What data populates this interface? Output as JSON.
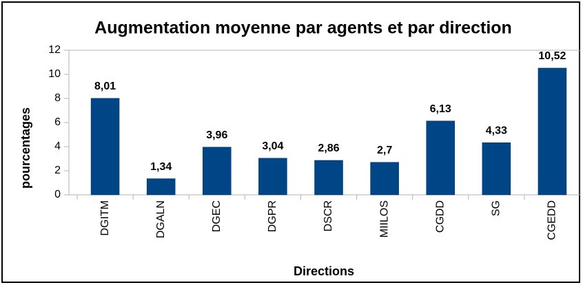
{
  "chart_data": {
    "type": "bar",
    "title": "Augmentation moyenne par agents et par direction",
    "x_label": "Directions",
    "y_label": "pourcentages",
    "categories": [
      "DGITM",
      "DGALN",
      "DGEC",
      "DGPR",
      "DSCR",
      "MIILOS",
      "CGDD",
      "SG",
      "CGEDD"
    ],
    "values": [
      8.01,
      1.34,
      3.96,
      3.04,
      2.86,
      2.7,
      6.13,
      4.33,
      10.52
    ],
    "value_labels": [
      "8,01",
      "1,34",
      "3,96",
      "3,04",
      "2,86",
      "2,7",
      "6,13",
      "4,33",
      "10,52"
    ],
    "color": "#004586",
    "ylim": [
      0,
      12
    ],
    "yticks": [
      0,
      2,
      4,
      6,
      8,
      10,
      12
    ],
    "grid": false
  }
}
